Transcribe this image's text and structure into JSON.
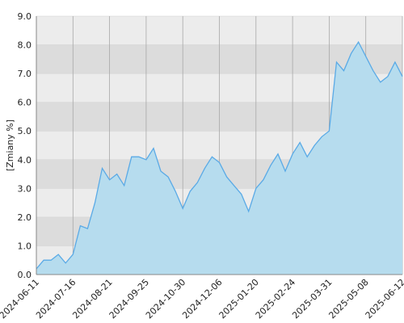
{
  "chart_data": {
    "type": "area",
    "y_label": "[Zmiany %]",
    "categories": [
      "2024-06-11",
      null,
      null,
      null,
      null,
      "2024-07-16",
      null,
      null,
      null,
      null,
      "2024-08-21",
      null,
      null,
      null,
      null,
      "2024-09-25",
      null,
      null,
      null,
      null,
      "2024-10-30",
      null,
      null,
      null,
      null,
      "2024-12-06",
      null,
      null,
      null,
      null,
      "2025-01-20",
      null,
      null,
      null,
      null,
      "2025-02-24",
      null,
      null,
      null,
      null,
      "2025-03-31",
      null,
      null,
      null,
      null,
      "2025-05-08",
      null,
      null,
      null,
      null,
      "2025-06-12"
    ],
    "values": [
      0.2,
      0.5,
      0.5,
      0.7,
      0.4,
      0.7,
      1.7,
      1.6,
      2.5,
      3.7,
      3.3,
      3.5,
      3.1,
      4.1,
      4.1,
      4.0,
      4.4,
      3.6,
      3.4,
      2.9,
      2.3,
      2.9,
      3.2,
      3.7,
      4.1,
      3.9,
      3.4,
      3.1,
      2.8,
      2.2,
      3.0,
      3.3,
      3.8,
      4.2,
      3.6,
      4.2,
      4.6,
      4.1,
      4.5,
      4.8,
      5.0,
      7.4,
      7.1,
      7.7,
      8.1,
      7.6,
      7.1,
      6.7,
      6.9,
      7.4,
      6.9
    ],
    "color": "#5aaae6",
    "fill": "#b6dcee",
    "ylim": [
      0,
      9
    ],
    "yticks": [
      {
        "value": 0,
        "label": "0.0"
      },
      {
        "value": 1,
        "label": "1.0"
      },
      {
        "value": 2,
        "label": "2.0"
      },
      {
        "value": 3,
        "label": "3.0"
      },
      {
        "value": 4,
        "label": "4.0"
      },
      {
        "value": 5,
        "label": "5.0"
      },
      {
        "value": 6,
        "label": "6.0"
      },
      {
        "value": 7,
        "label": "7.0"
      },
      {
        "value": 8,
        "label": "8.0"
      },
      {
        "value": 9,
        "label": "9.0"
      }
    ],
    "grid": true
  }
}
